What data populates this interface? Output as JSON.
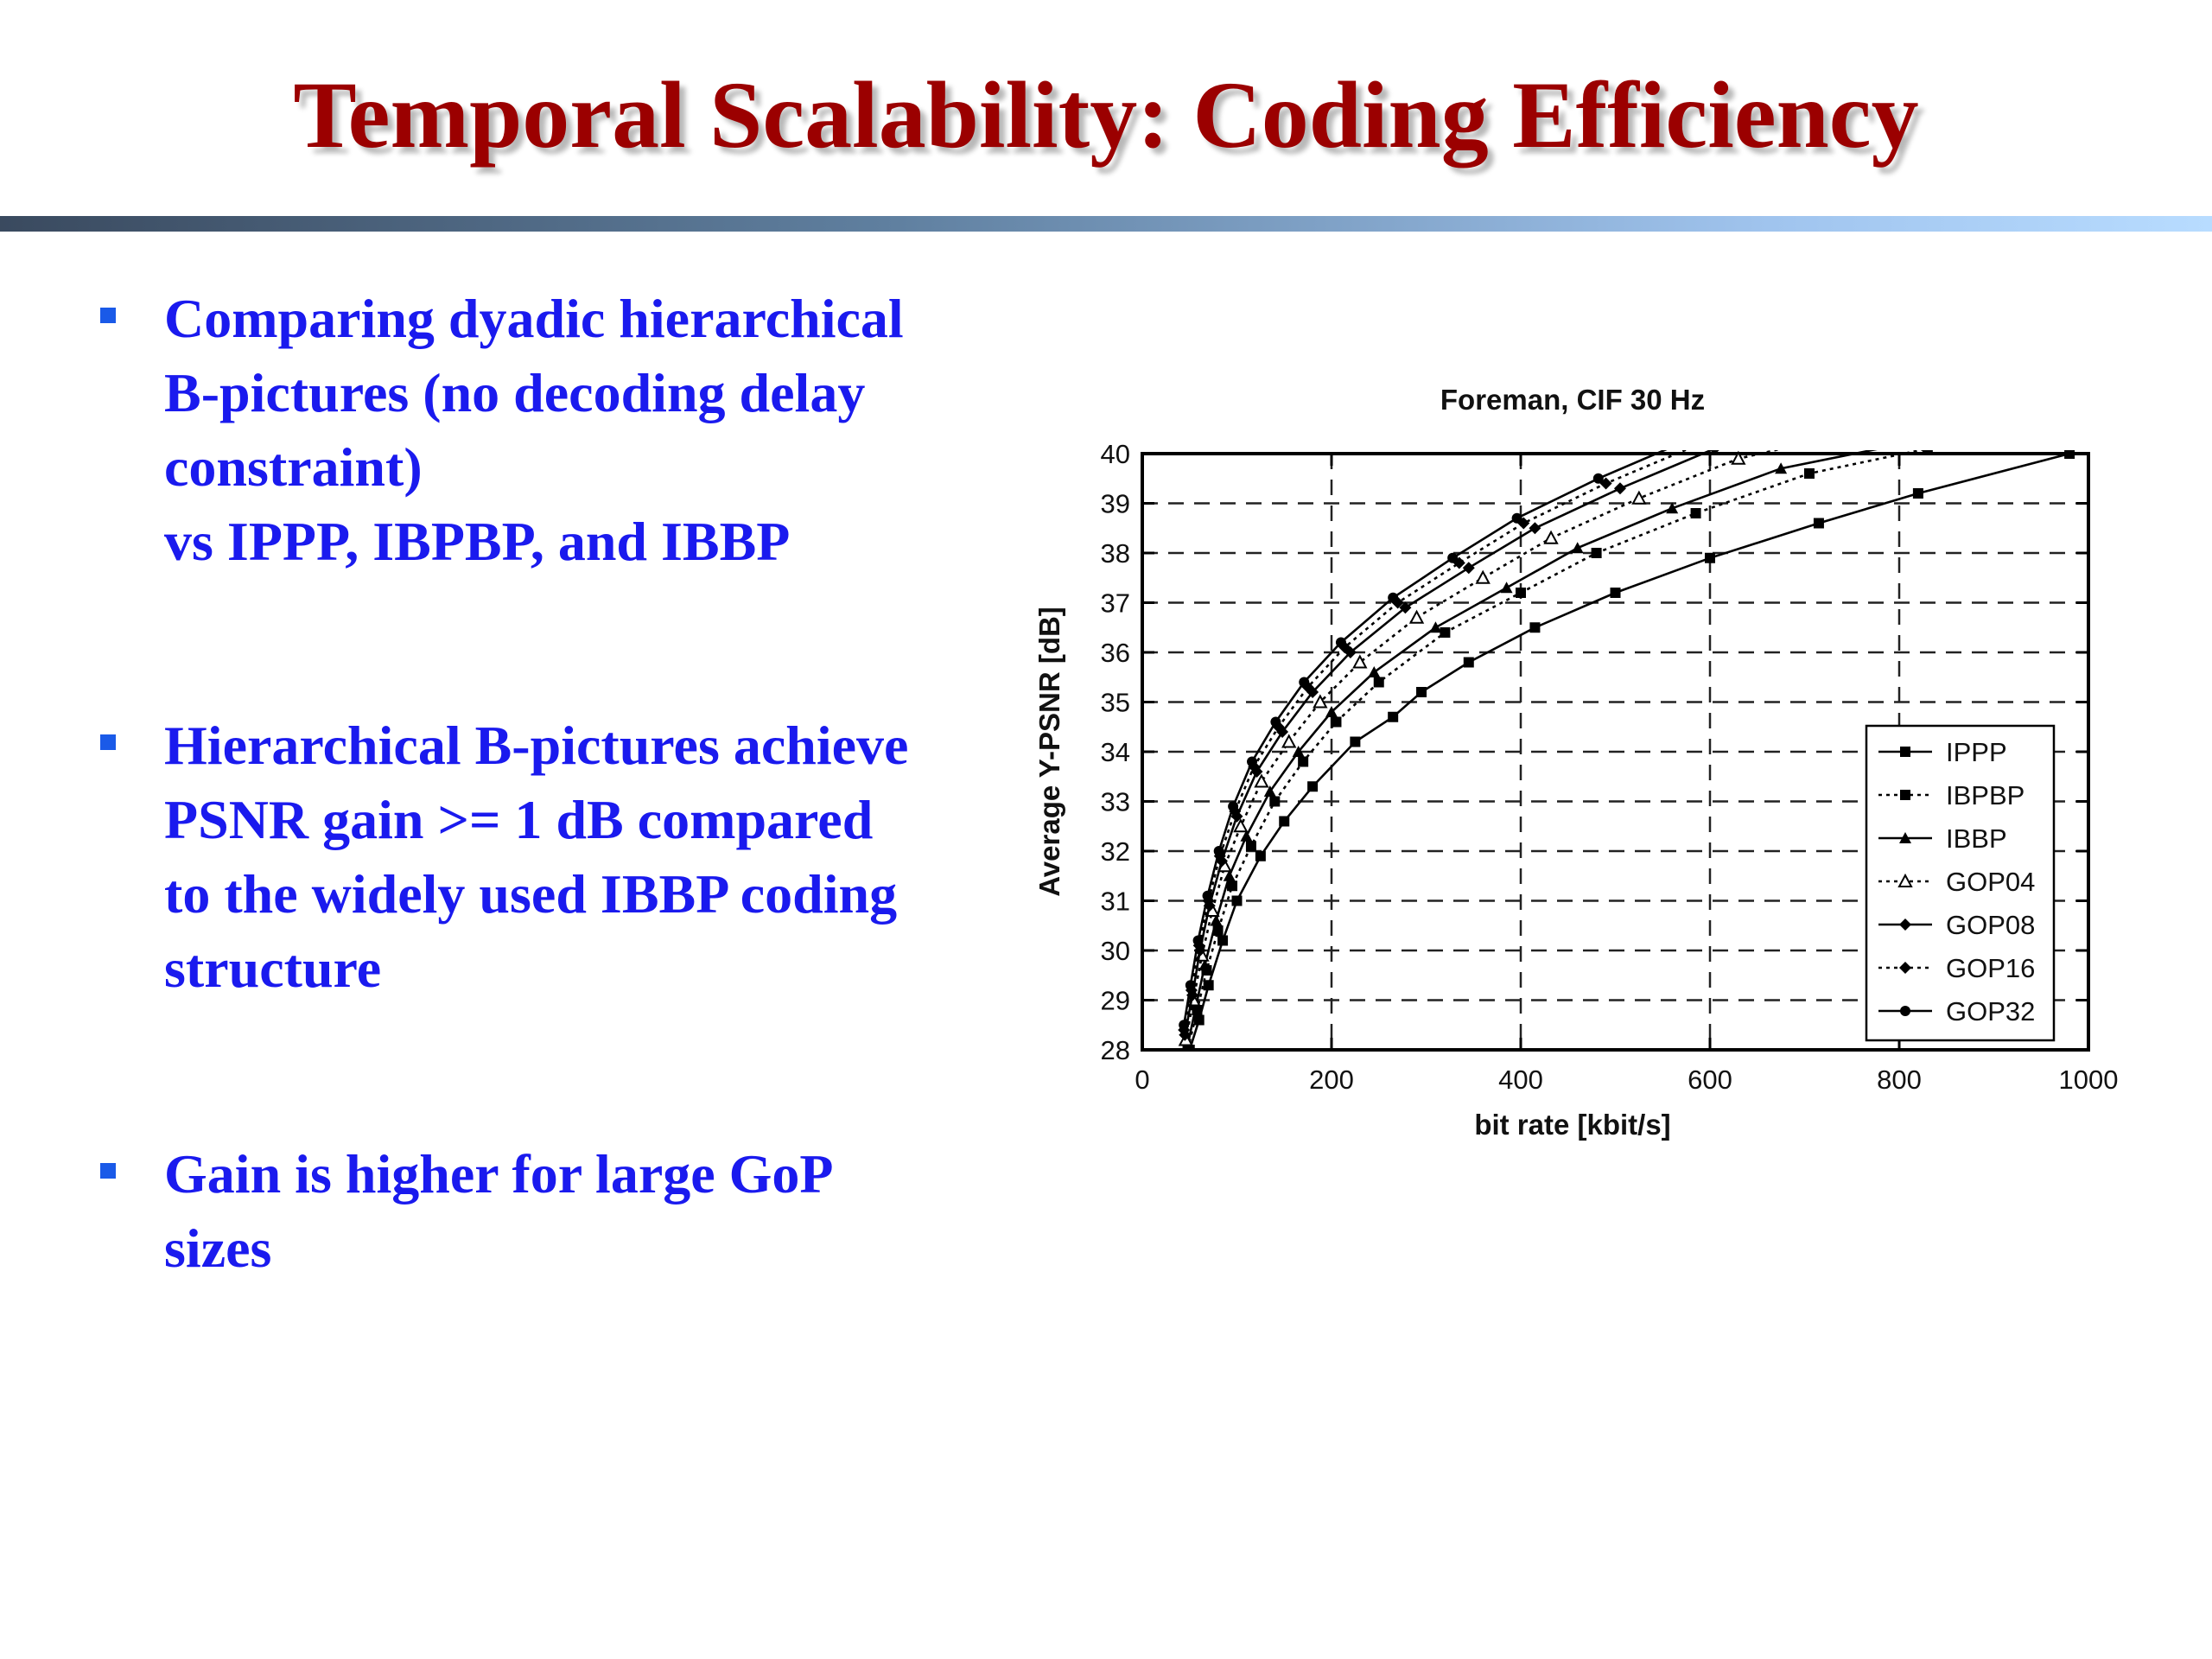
{
  "slide": {
    "title": "Temporal Scalability: Coding Efficiency",
    "colors": {
      "title": "#9b0000",
      "bullet_text": "#1a1aee",
      "bullet_marker": "#1a5ae8"
    },
    "bullets": [
      {
        "lines": [
          "Comparing dyadic hierarchical",
          "B-pictures (no decoding delay",
          "constraint)",
          "vs IPPP, IBPBP, and IBBP"
        ]
      },
      {
        "lines": [
          "Hierarchical B-pictures achieve",
          "PSNR gain >= 1 dB compared",
          "to the widely used IBBP coding",
          "structure"
        ]
      },
      {
        "lines": [
          "Gain is higher for large GoP",
          "sizes"
        ]
      }
    ]
  },
  "chart_data": {
    "type": "line",
    "title": "Foreman, CIF 30 Hz",
    "xlabel": "bit rate [kbit/s]",
    "ylabel": "Average Y-PSNR [dB]",
    "xlim": [
      0,
      1000
    ],
    "ylim": [
      28,
      40
    ],
    "xticks": [
      "0",
      "200",
      "400",
      "600",
      "800",
      "1000"
    ],
    "yticks": [
      "28",
      "29",
      "30",
      "31",
      "32",
      "33",
      "34",
      "35",
      "36",
      "37",
      "38",
      "39",
      "40"
    ],
    "grid": true,
    "legend_position": "bottom-right",
    "series": [
      {
        "name": "IPPP",
        "style": "solid",
        "marker": "square",
        "x": [
          50,
          60,
          70,
          85,
          100,
          125,
          150,
          180,
          225,
          265,
          295,
          345,
          415,
          500,
          600,
          715,
          820,
          980
        ],
        "y": [
          28.0,
          28.6,
          29.3,
          30.2,
          31.0,
          31.9,
          32.6,
          33.3,
          34.2,
          34.7,
          35.2,
          35.8,
          36.5,
          37.2,
          37.9,
          38.6,
          39.2,
          40.0
        ]
      },
      {
        "name": "IBPBP",
        "style": "dotted",
        "marker": "square",
        "x": [
          48,
          58,
          68,
          80,
          95,
          115,
          140,
          170,
          205,
          250,
          320,
          400,
          480,
          585,
          705,
          830
        ],
        "y": [
          28.0,
          28.8,
          29.6,
          30.4,
          31.3,
          32.1,
          33.0,
          33.8,
          34.6,
          35.4,
          36.4,
          37.2,
          38.0,
          38.8,
          39.6,
          40.1
        ]
      },
      {
        "name": "IBBP",
        "style": "solid",
        "marker": "triangle",
        "x": [
          48,
          57,
          66,
          78,
          92,
          110,
          135,
          165,
          200,
          245,
          310,
          385,
          460,
          560,
          675,
          805
        ],
        "y": [
          28.1,
          28.9,
          29.7,
          30.6,
          31.5,
          32.3,
          33.2,
          34.0,
          34.8,
          35.6,
          36.5,
          37.3,
          38.1,
          38.9,
          39.7,
          40.2
        ]
      },
      {
        "name": "GOP04",
        "style": "dotted",
        "marker": "triangle-open",
        "x": [
          46,
          54,
          63,
          74,
          87,
          104,
          126,
          155,
          188,
          230,
          290,
          360,
          432,
          525,
          630,
          745
        ],
        "y": [
          28.2,
          29.0,
          29.9,
          30.8,
          31.7,
          32.5,
          33.4,
          34.2,
          35.0,
          35.8,
          36.7,
          37.5,
          38.3,
          39.1,
          39.9,
          40.4
        ]
      },
      {
        "name": "GOP08",
        "style": "solid",
        "marker": "diamond",
        "x": [
          45,
          53,
          61,
          71,
          84,
          100,
          121,
          148,
          180,
          220,
          278,
          345,
          415,
          505,
          605,
          715
        ],
        "y": [
          28.3,
          29.1,
          30.0,
          30.9,
          31.8,
          32.7,
          33.6,
          34.4,
          35.2,
          36.0,
          36.9,
          37.7,
          38.5,
          39.3,
          40.1,
          40.5
        ]
      },
      {
        "name": "GOP16",
        "style": "dotted",
        "marker": "diamond",
        "x": [
          44,
          52,
          60,
          70,
          82,
          98,
          118,
          144,
          175,
          214,
          270,
          335,
          403,
          490,
          590,
          700
        ],
        "y": [
          28.4,
          29.2,
          30.1,
          31.0,
          31.9,
          32.8,
          33.7,
          34.5,
          35.3,
          36.1,
          37.0,
          37.8,
          38.6,
          39.4,
          40.2,
          40.6
        ]
      },
      {
        "name": "GOP32",
        "style": "solid",
        "marker": "circle",
        "x": [
          44,
          51,
          59,
          69,
          81,
          96,
          116,
          141,
          171,
          210,
          265,
          328,
          396,
          482,
          580,
          690
        ],
        "y": [
          28.5,
          29.3,
          30.2,
          31.1,
          32.0,
          32.9,
          33.8,
          34.6,
          35.4,
          36.2,
          37.1,
          37.9,
          38.7,
          39.5,
          40.3,
          40.7
        ]
      }
    ]
  }
}
